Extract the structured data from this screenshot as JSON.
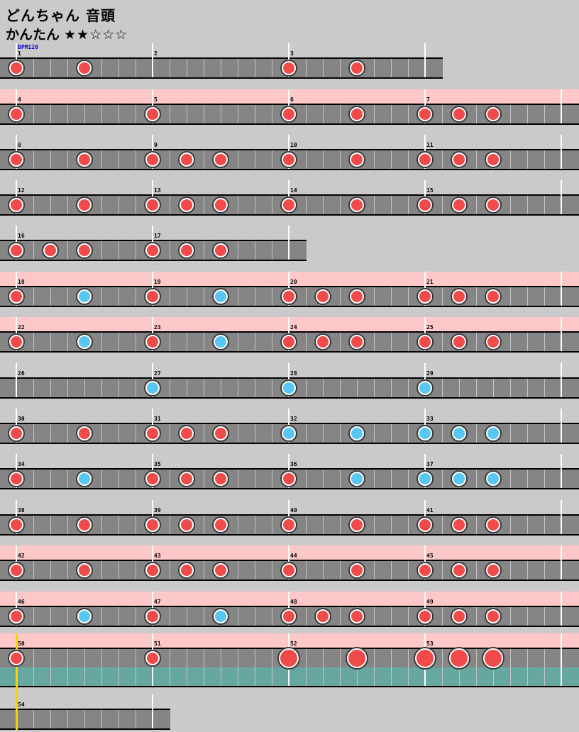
{
  "header": {
    "title": "どんちゃん 音頭",
    "difficulty_label": "かんたん",
    "stars": "★★☆☆☆",
    "bpm_label": "BPM120"
  },
  "colors": {
    "background": "#cacaca",
    "lane": "#858585",
    "bar_border": "#000000",
    "cell_line": "#c4c4c4",
    "measure_line": "#ffffff",
    "gogo_pink": "#ffc8c8",
    "branch_teal": "#66a7a0",
    "don_red": "#f04a4a",
    "ka_blue": "#58c7f2",
    "note_ring": "#ffffff",
    "note_outline": "#3a3a3a",
    "marker_yellow": "#f7d400",
    "number_text": "#000000",
    "bpm_text": "#0000d0"
  },
  "chart": {
    "cells_per_measure": 8,
    "note_types": {
      "don": "small red don",
      "ka": "small blue ka",
      "DON": "large red don"
    },
    "rows": [
      {
        "gogo": false,
        "measures": [
          {
            "n": "1",
            "notes": [
              {
                "cell": 0,
                "type": "don"
              },
              {
                "cell": 4,
                "type": "don"
              }
            ]
          },
          {
            "n": "2",
            "notes": []
          },
          {
            "n": "3",
            "notes": [
              {
                "cell": 0,
                "type": "don"
              },
              {
                "cell": 4,
                "type": "don"
              }
            ]
          }
        ]
      },
      {
        "gogo": true,
        "measures": [
          {
            "n": "4",
            "notes": [
              {
                "cell": 0,
                "type": "don"
              }
            ]
          },
          {
            "n": "5",
            "notes": [
              {
                "cell": 0,
                "type": "don"
              }
            ]
          },
          {
            "n": "6",
            "notes": [
              {
                "cell": 0,
                "type": "don"
              },
              {
                "cell": 4,
                "type": "don"
              }
            ]
          },
          {
            "n": "7",
            "notes": [
              {
                "cell": 0,
                "type": "don"
              },
              {
                "cell": 2,
                "type": "don"
              },
              {
                "cell": 4,
                "type": "don"
              }
            ]
          }
        ]
      },
      {
        "gogo": false,
        "measures": [
          {
            "n": "8",
            "notes": [
              {
                "cell": 0,
                "type": "don"
              },
              {
                "cell": 4,
                "type": "don"
              }
            ]
          },
          {
            "n": "9",
            "notes": [
              {
                "cell": 0,
                "type": "don"
              },
              {
                "cell": 2,
                "type": "don"
              },
              {
                "cell": 4,
                "type": "don"
              }
            ]
          },
          {
            "n": "10",
            "notes": [
              {
                "cell": 0,
                "type": "don"
              },
              {
                "cell": 4,
                "type": "don"
              }
            ]
          },
          {
            "n": "11",
            "notes": [
              {
                "cell": 0,
                "type": "don"
              },
              {
                "cell": 2,
                "type": "don"
              },
              {
                "cell": 4,
                "type": "don"
              }
            ]
          }
        ]
      },
      {
        "gogo": false,
        "measures": [
          {
            "n": "12",
            "notes": [
              {
                "cell": 0,
                "type": "don"
              },
              {
                "cell": 4,
                "type": "don"
              }
            ]
          },
          {
            "n": "13",
            "notes": [
              {
                "cell": 0,
                "type": "don"
              },
              {
                "cell": 2,
                "type": "don"
              },
              {
                "cell": 4,
                "type": "don"
              }
            ]
          },
          {
            "n": "14",
            "notes": [
              {
                "cell": 0,
                "type": "don"
              },
              {
                "cell": 4,
                "type": "don"
              }
            ]
          },
          {
            "n": "15",
            "notes": [
              {
                "cell": 0,
                "type": "don"
              },
              {
                "cell": 2,
                "type": "don"
              },
              {
                "cell": 4,
                "type": "don"
              }
            ]
          }
        ]
      },
      {
        "gogo": false,
        "measures": [
          {
            "n": "16",
            "notes": [
              {
                "cell": 0,
                "type": "don"
              },
              {
                "cell": 2,
                "type": "don"
              },
              {
                "cell": 4,
                "type": "don"
              }
            ]
          },
          {
            "n": "17",
            "notes": [
              {
                "cell": 0,
                "type": "don"
              },
              {
                "cell": 2,
                "type": "don"
              },
              {
                "cell": 4,
                "type": "don"
              }
            ]
          }
        ]
      },
      {
        "gogo": true,
        "measures": [
          {
            "n": "18",
            "notes": [
              {
                "cell": 0,
                "type": "don"
              },
              {
                "cell": 4,
                "type": "ka"
              }
            ]
          },
          {
            "n": "19",
            "notes": [
              {
                "cell": 0,
                "type": "don"
              },
              {
                "cell": 4,
                "type": "ka"
              }
            ]
          },
          {
            "n": "20",
            "notes": [
              {
                "cell": 0,
                "type": "don"
              },
              {
                "cell": 2,
                "type": "don"
              },
              {
                "cell": 4,
                "type": "don"
              }
            ]
          },
          {
            "n": "21",
            "notes": [
              {
                "cell": 0,
                "type": "don"
              },
              {
                "cell": 2,
                "type": "don"
              },
              {
                "cell": 4,
                "type": "don"
              }
            ]
          }
        ]
      },
      {
        "gogo": true,
        "measures": [
          {
            "n": "22",
            "notes": [
              {
                "cell": 0,
                "type": "don"
              },
              {
                "cell": 4,
                "type": "ka"
              }
            ]
          },
          {
            "n": "23",
            "notes": [
              {
                "cell": 0,
                "type": "don"
              },
              {
                "cell": 4,
                "type": "ka"
              }
            ]
          },
          {
            "n": "24",
            "notes": [
              {
                "cell": 0,
                "type": "don"
              },
              {
                "cell": 2,
                "type": "don"
              },
              {
                "cell": 4,
                "type": "don"
              }
            ]
          },
          {
            "n": "25",
            "notes": [
              {
                "cell": 0,
                "type": "don"
              },
              {
                "cell": 2,
                "type": "don"
              },
              {
                "cell": 4,
                "type": "don"
              }
            ]
          }
        ]
      },
      {
        "gogo": false,
        "measures": [
          {
            "n": "26",
            "notes": []
          },
          {
            "n": "27",
            "notes": [
              {
                "cell": 0,
                "type": "ka"
              }
            ]
          },
          {
            "n": "28",
            "notes": [
              {
                "cell": 0,
                "type": "ka"
              }
            ]
          },
          {
            "n": "29",
            "notes": [
              {
                "cell": 0,
                "type": "ka"
              }
            ]
          }
        ]
      },
      {
        "gogo": false,
        "measures": [
          {
            "n": "30",
            "notes": [
              {
                "cell": 0,
                "type": "don"
              },
              {
                "cell": 4,
                "type": "don"
              }
            ]
          },
          {
            "n": "31",
            "notes": [
              {
                "cell": 0,
                "type": "don"
              },
              {
                "cell": 2,
                "type": "don"
              },
              {
                "cell": 4,
                "type": "don"
              }
            ]
          },
          {
            "n": "32",
            "notes": [
              {
                "cell": 0,
                "type": "ka"
              },
              {
                "cell": 4,
                "type": "ka"
              }
            ]
          },
          {
            "n": "33",
            "notes": [
              {
                "cell": 0,
                "type": "ka"
              },
              {
                "cell": 2,
                "type": "ka"
              },
              {
                "cell": 4,
                "type": "ka"
              }
            ]
          }
        ]
      },
      {
        "gogo": false,
        "measures": [
          {
            "n": "34",
            "notes": [
              {
                "cell": 0,
                "type": "don"
              },
              {
                "cell": 4,
                "type": "ka"
              }
            ]
          },
          {
            "n": "35",
            "notes": [
              {
                "cell": 0,
                "type": "don"
              },
              {
                "cell": 2,
                "type": "don"
              },
              {
                "cell": 4,
                "type": "don"
              }
            ]
          },
          {
            "n": "36",
            "notes": [
              {
                "cell": 0,
                "type": "don"
              },
              {
                "cell": 4,
                "type": "ka"
              }
            ]
          },
          {
            "n": "37",
            "notes": [
              {
                "cell": 0,
                "type": "ka"
              },
              {
                "cell": 2,
                "type": "ka"
              },
              {
                "cell": 4,
                "type": "ka"
              }
            ]
          }
        ]
      },
      {
        "gogo": false,
        "measures": [
          {
            "n": "38",
            "notes": [
              {
                "cell": 0,
                "type": "don"
              },
              {
                "cell": 4,
                "type": "don"
              }
            ]
          },
          {
            "n": "39",
            "notes": [
              {
                "cell": 0,
                "type": "don"
              },
              {
                "cell": 2,
                "type": "don"
              },
              {
                "cell": 4,
                "type": "don"
              }
            ]
          },
          {
            "n": "40",
            "notes": [
              {
                "cell": 0,
                "type": "don"
              },
              {
                "cell": 4,
                "type": "don"
              }
            ]
          },
          {
            "n": "41",
            "notes": [
              {
                "cell": 0,
                "type": "don"
              },
              {
                "cell": 2,
                "type": "don"
              },
              {
                "cell": 4,
                "type": "don"
              }
            ]
          }
        ]
      },
      {
        "gogo": true,
        "measures": [
          {
            "n": "42",
            "notes": [
              {
                "cell": 0,
                "type": "don"
              },
              {
                "cell": 4,
                "type": "don"
              }
            ]
          },
          {
            "n": "43",
            "notes": [
              {
                "cell": 0,
                "type": "don"
              },
              {
                "cell": 2,
                "type": "don"
              },
              {
                "cell": 4,
                "type": "don"
              }
            ]
          },
          {
            "n": "44",
            "notes": [
              {
                "cell": 0,
                "type": "don"
              },
              {
                "cell": 4,
                "type": "don"
              }
            ]
          },
          {
            "n": "45",
            "notes": [
              {
                "cell": 0,
                "type": "don"
              },
              {
                "cell": 2,
                "type": "don"
              },
              {
                "cell": 4,
                "type": "don"
              }
            ]
          }
        ]
      },
      {
        "gogo": true,
        "measures": [
          {
            "n": "46",
            "notes": [
              {
                "cell": 0,
                "type": "don"
              },
              {
                "cell": 4,
                "type": "ka"
              }
            ]
          },
          {
            "n": "47",
            "notes": [
              {
                "cell": 0,
                "type": "don"
              },
              {
                "cell": 4,
                "type": "ka"
              }
            ]
          },
          {
            "n": "48",
            "notes": [
              {
                "cell": 0,
                "type": "don"
              },
              {
                "cell": 2,
                "type": "don"
              },
              {
                "cell": 4,
                "type": "don"
              }
            ]
          },
          {
            "n": "49",
            "notes": [
              {
                "cell": 0,
                "type": "don"
              },
              {
                "cell": 2,
                "type": "don"
              },
              {
                "cell": 4,
                "type": "don"
              }
            ]
          }
        ]
      },
      {
        "gogo": true,
        "branch_band": true,
        "position_marker": true,
        "measures": [
          {
            "n": "50",
            "notes": [
              {
                "cell": 0,
                "type": "don"
              }
            ]
          },
          {
            "n": "51",
            "notes": [
              {
                "cell": 0,
                "type": "don"
              }
            ]
          },
          {
            "n": "52",
            "notes": [
              {
                "cell": 0,
                "type": "DON"
              },
              {
                "cell": 4,
                "type": "DON"
              }
            ]
          },
          {
            "n": "53",
            "notes": [
              {
                "cell": 0,
                "type": "DON"
              },
              {
                "cell": 2,
                "type": "DON"
              },
              {
                "cell": 4,
                "type": "DON"
              }
            ]
          }
        ]
      },
      {
        "gogo": false,
        "measures": [
          {
            "n": "54",
            "notes": []
          }
        ]
      }
    ]
  }
}
